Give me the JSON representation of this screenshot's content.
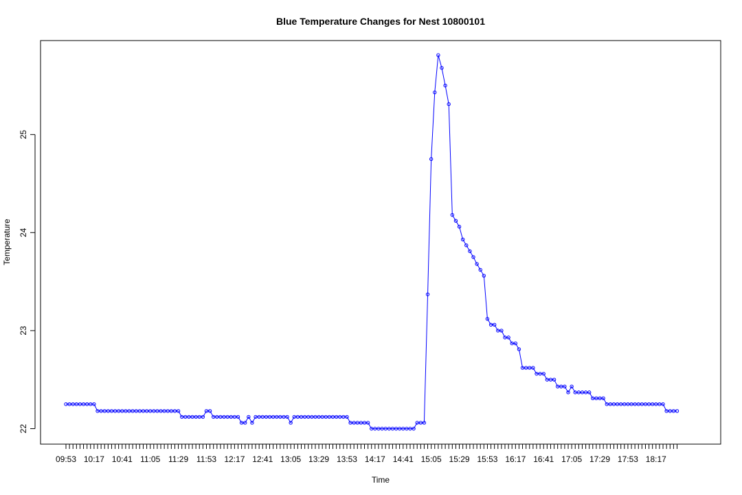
{
  "chart_data": {
    "type": "line",
    "title": "Blue Temperature Changes for Nest 10800101",
    "xlabel": "Time",
    "ylabel": "Temperature",
    "ylim": [
      21.9,
      25.95
    ],
    "yticks": [
      22,
      23,
      24,
      25
    ],
    "x_tick_labels": [
      "09:53",
      "10:17",
      "10:41",
      "11:05",
      "11:29",
      "11:53",
      "12:17",
      "12:41",
      "13:05",
      "13:29",
      "13:53",
      "14:17",
      "14:41",
      "15:05",
      "15:29",
      "15:53",
      "16:17",
      "16:41",
      "17:05",
      "17:29",
      "17:53",
      "18:17"
    ],
    "x_start": "09:53",
    "x_end": "18:37",
    "x_interval_minutes": 3,
    "line_color": "#0000ff",
    "marker": "open-circle",
    "grid": false,
    "legend": "none",
    "series": [
      {
        "values": [
          22.25,
          22.25,
          22.25,
          22.25,
          22.25,
          22.25,
          22.25,
          22.25,
          22.25,
          22.18,
          22.18,
          22.18,
          22.18,
          22.18,
          22.18,
          22.18,
          22.18,
          22.18,
          22.18,
          22.18,
          22.18,
          22.18,
          22.18,
          22.18,
          22.18,
          22.18,
          22.18,
          22.18,
          22.18,
          22.18,
          22.18,
          22.18,
          22.18,
          22.12,
          22.12,
          22.12,
          22.12,
          22.12,
          22.12,
          22.12,
          22.18,
          22.18,
          22.12,
          22.12,
          22.12,
          22.12,
          22.12,
          22.12,
          22.12,
          22.12,
          22.06,
          22.06,
          22.12,
          22.06,
          22.12,
          22.12,
          22.12,
          22.12,
          22.12,
          22.12,
          22.12,
          22.12,
          22.12,
          22.12,
          22.06,
          22.12,
          22.12,
          22.12,
          22.12,
          22.12,
          22.12,
          22.12,
          22.12,
          22.12,
          22.12,
          22.12,
          22.12,
          22.12,
          22.12,
          22.12,
          22.12,
          22.06,
          22.06,
          22.06,
          22.06,
          22.06,
          22.06,
          22.0,
          22.0,
          22.0,
          22.0,
          22.0,
          22.0,
          22.0,
          22.0,
          22.0,
          22.0,
          22.0,
          22.0,
          22.0,
          22.06,
          22.06,
          22.06,
          23.37,
          24.75,
          25.43,
          25.81,
          25.68,
          25.5,
          25.31,
          24.18,
          24.12,
          24.06,
          23.93,
          23.87,
          23.81,
          23.75,
          23.68,
          23.62,
          23.56,
          23.12,
          23.06,
          23.06,
          23.0,
          23.0,
          22.93,
          22.93,
          22.87,
          22.87,
          22.81,
          22.62,
          22.62,
          22.62,
          22.62,
          22.56,
          22.56,
          22.56,
          22.5,
          22.5,
          22.5,
          22.43,
          22.43,
          22.43,
          22.37,
          22.43,
          22.37,
          22.37,
          22.37,
          22.37,
          22.37,
          22.31,
          22.31,
          22.31,
          22.31,
          22.25,
          22.25,
          22.25,
          22.25,
          22.25,
          22.25,
          22.25,
          22.25,
          22.25,
          22.25,
          22.25,
          22.25,
          22.25,
          22.25,
          22.25,
          22.25,
          22.25,
          22.18,
          22.18,
          22.18,
          22.18
        ]
      }
    ]
  }
}
